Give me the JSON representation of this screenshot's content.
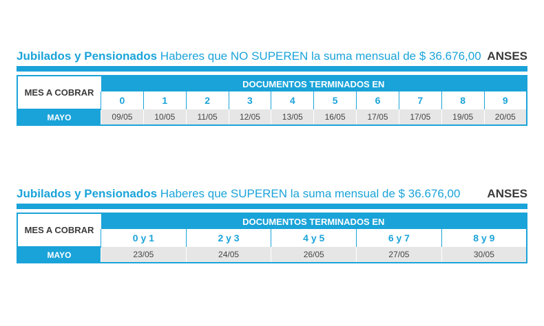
{
  "section1": {
    "title_bold": "Jubilados y Pensionados",
    "title_rest": "Haberes que NO SUPEREN la suma mensual de $ 36.676,00",
    "brand": "ANSES",
    "month_label": "MES A COBRAR",
    "header": "DOCUMENTOS TERMINADOS EN",
    "month": "MAYO",
    "digits": [
      "0",
      "1",
      "2",
      "3",
      "4",
      "5",
      "6",
      "7",
      "8",
      "9"
    ],
    "dates": [
      "09/05",
      "10/05",
      "11/05",
      "12/05",
      "13/05",
      "16/05",
      "17/05",
      "17/05",
      "19/05",
      "20/05"
    ]
  },
  "section2": {
    "title_bold": "Jubilados y Pensionados",
    "title_rest": "Haberes que SUPEREN la suma mensual de $ 36.676,00",
    "brand": "ANSES",
    "month_label": "MES A COBRAR",
    "header": "DOCUMENTOS TERMINADOS EN",
    "month": "MAYO",
    "digits": [
      "0 y 1",
      "2 y 3",
      "4 y 5",
      "6 y 7",
      "8 y 9"
    ],
    "dates": [
      "23/05",
      "24/05",
      "26/05",
      "27/05",
      "30/05"
    ]
  },
  "colors": {
    "accent": "#1aa3d9",
    "date_bg": "#e6e6e6",
    "brand_text": "#3a3a3a"
  }
}
